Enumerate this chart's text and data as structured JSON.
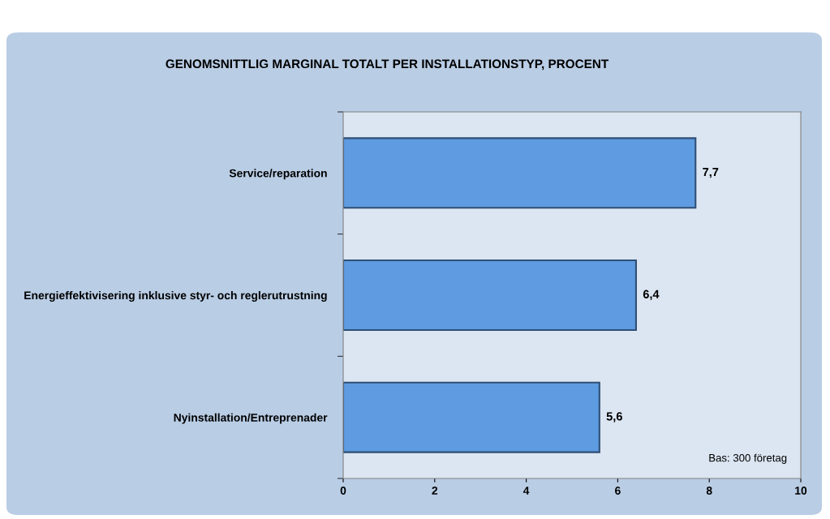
{
  "chart_data": {
    "type": "bar",
    "orientation": "horizontal",
    "title": "GENOMSNITTLIG MARGINAL TOTALT PER INSTALLATIONSTYP, PROCENT",
    "categories": [
      "Service/reparation",
      "Energieffektivisering inklusive styr- och reglerutrustning",
      "Nyinstallation/Entreprenader"
    ],
    "values": [
      7.7,
      6.4,
      5.6
    ],
    "value_labels": [
      "7,7",
      "6,4",
      "5,6"
    ],
    "color": "#5e9be0",
    "xlim": [
      0,
      10
    ],
    "xticks": [
      0,
      2,
      4,
      6,
      8,
      10
    ],
    "annotations": [
      "Bas: 300 företag"
    ]
  }
}
